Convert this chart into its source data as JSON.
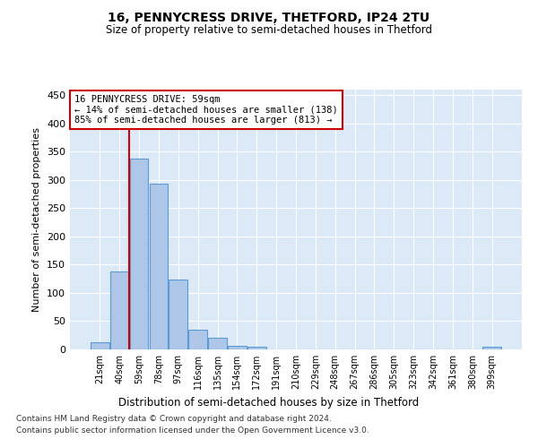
{
  "title_line1": "16, PENNYCRESS DRIVE, THETFORD, IP24 2TU",
  "title_line2": "Size of property relative to semi-detached houses in Thetford",
  "xlabel": "Distribution of semi-detached houses by size in Thetford",
  "ylabel": "Number of semi-detached properties",
  "footnote1": "Contains HM Land Registry data © Crown copyright and database right 2024.",
  "footnote2": "Contains public sector information licensed under the Open Government Licence v3.0.",
  "annotation_line1": "16 PENNYCRESS DRIVE: 59sqm",
  "annotation_line2": "← 14% of semi-detached houses are smaller (138)",
  "annotation_line3": "85% of semi-detached houses are larger (813) →",
  "categories": [
    "21sqm",
    "40sqm",
    "59sqm",
    "78sqm",
    "97sqm",
    "116sqm",
    "135sqm",
    "154sqm",
    "172sqm",
    "191sqm",
    "210sqm",
    "229sqm",
    "248sqm",
    "267sqm",
    "286sqm",
    "305sqm",
    "323sqm",
    "342sqm",
    "361sqm",
    "380sqm",
    "399sqm"
  ],
  "values": [
    12,
    138,
    338,
    293,
    123,
    35,
    20,
    7,
    4,
    0,
    0,
    0,
    0,
    0,
    0,
    0,
    0,
    0,
    0,
    0,
    4
  ],
  "bar_color": "#aec6e8",
  "bar_edge_color": "#5b9bd5",
  "vline_color": "#cc0000",
  "vline_index": 2,
  "annotation_box_edge_color": "#cc0000",
  "background_color": "#dce9f7",
  "ylim": [
    0,
    460
  ],
  "yticks": [
    0,
    50,
    100,
    150,
    200,
    250,
    300,
    350,
    400,
    450
  ]
}
